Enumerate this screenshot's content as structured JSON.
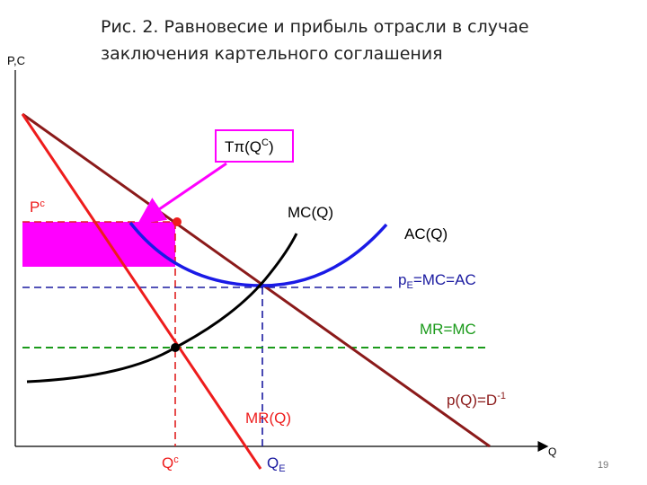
{
  "title": {
    "line1": "Рис. 2. Равновесие и прибыль отрасли в случае",
    "line2": "заключения картельного соглашения"
  },
  "axes": {
    "y_label": "P,C",
    "x_label": "Q"
  },
  "labels": {
    "profit": {
      "base": "Tπ(Q",
      "sup": "C",
      "end": ")"
    },
    "pc": {
      "base": "P",
      "sup": "c"
    },
    "mc": "MC(Q)",
    "ac": "AC(Q)",
    "pe": {
      "base": "p",
      "sub": "E",
      "rest": "=MC=AC"
    },
    "mr_mc": "MR=MC",
    "demand": {
      "base": "p(Q)=D",
      "sup": "-1"
    },
    "mr": "MR(Q)",
    "qc": {
      "base": "Q",
      "sup": "c"
    },
    "qe": {
      "base": "Q",
      "sub": "E"
    }
  },
  "page_number": "19"
}
